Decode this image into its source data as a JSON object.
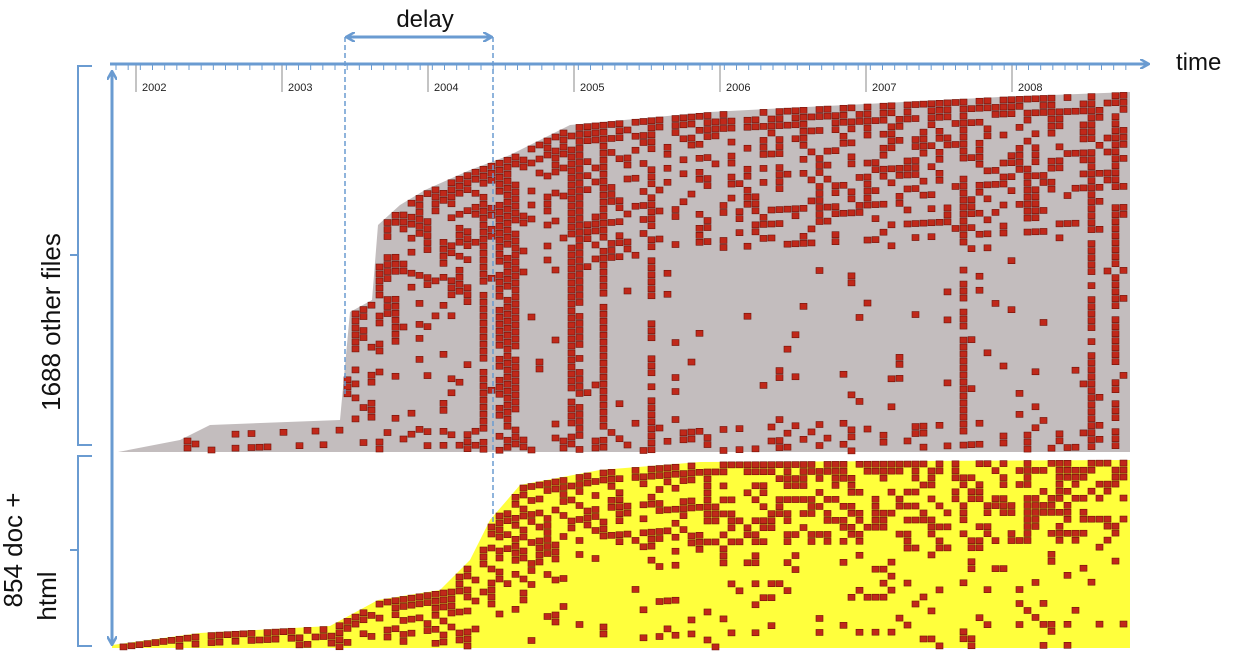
{
  "annotations": {
    "delay": "delay",
    "time": "time"
  },
  "timeline": {
    "years": [
      "2002",
      "2003",
      "2004",
      "2005",
      "2006",
      "2007",
      "2008"
    ]
  },
  "groups": [
    {
      "label_lines": [
        "1688 other files"
      ]
    },
    {
      "label_lines": [
        "854 doc +",
        "html"
      ]
    }
  ]
}
